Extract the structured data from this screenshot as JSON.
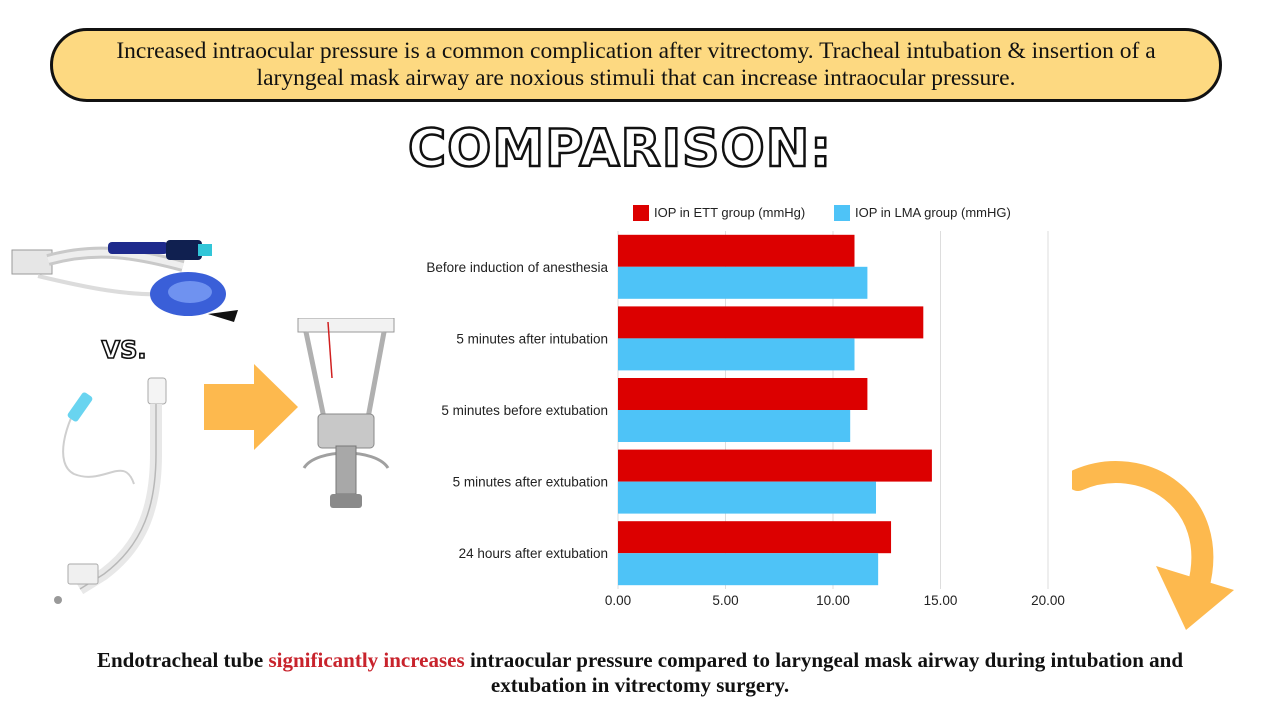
{
  "banner": {
    "text": "Increased intraocular pressure is a  common complication after vitrectomy. Tracheal intubation & insertion of a laryngeal mask airway are noxious stimuli that can increase intraocular pressure."
  },
  "heading": "COMPARISON:",
  "vs_label": "VS.",
  "conclusion": {
    "before": "Endotracheal tube ",
    "highlight": "significantly increases",
    "after": " intraocular pressure compared to laryngeal mask airway during intubation and extubation in vitrectomy surgery."
  },
  "colors": {
    "banner_bg": "#fdd981",
    "ett": "#dc0000",
    "lma": "#4ec3f7",
    "arrow": "#fdb94e",
    "highlight": "#c8232c"
  },
  "icons": [
    "laryngeal-mask-airway-icon",
    "endotracheal-tube-icon",
    "tonometer-icon",
    "right-arrow-icon",
    "curved-down-arrow-icon"
  ],
  "chart_data": {
    "type": "bar",
    "orientation": "horizontal",
    "categories": [
      "Before induction of anesthesia",
      "5 minutes after intubation",
      "5 minutes before extubation",
      "5 minutes after extubation",
      "24 hours after extubation"
    ],
    "series": [
      {
        "name": "IOP in ETT group (mmHg)",
        "color": "#dc0000",
        "values": [
          11.0,
          14.2,
          11.6,
          14.6,
          12.7
        ]
      },
      {
        "name": "IOP in LMA group (mmHG)",
        "color": "#4ec3f7",
        "values": [
          11.6,
          11.0,
          10.8,
          12.0,
          12.1
        ]
      }
    ],
    "xlim": [
      0,
      20
    ],
    "xticks": [
      "0.00",
      "5.00",
      "10.00",
      "15.00",
      "20.00"
    ],
    "tick_values": [
      0,
      5,
      10,
      15,
      20
    ],
    "grid": true,
    "legend": "top"
  }
}
